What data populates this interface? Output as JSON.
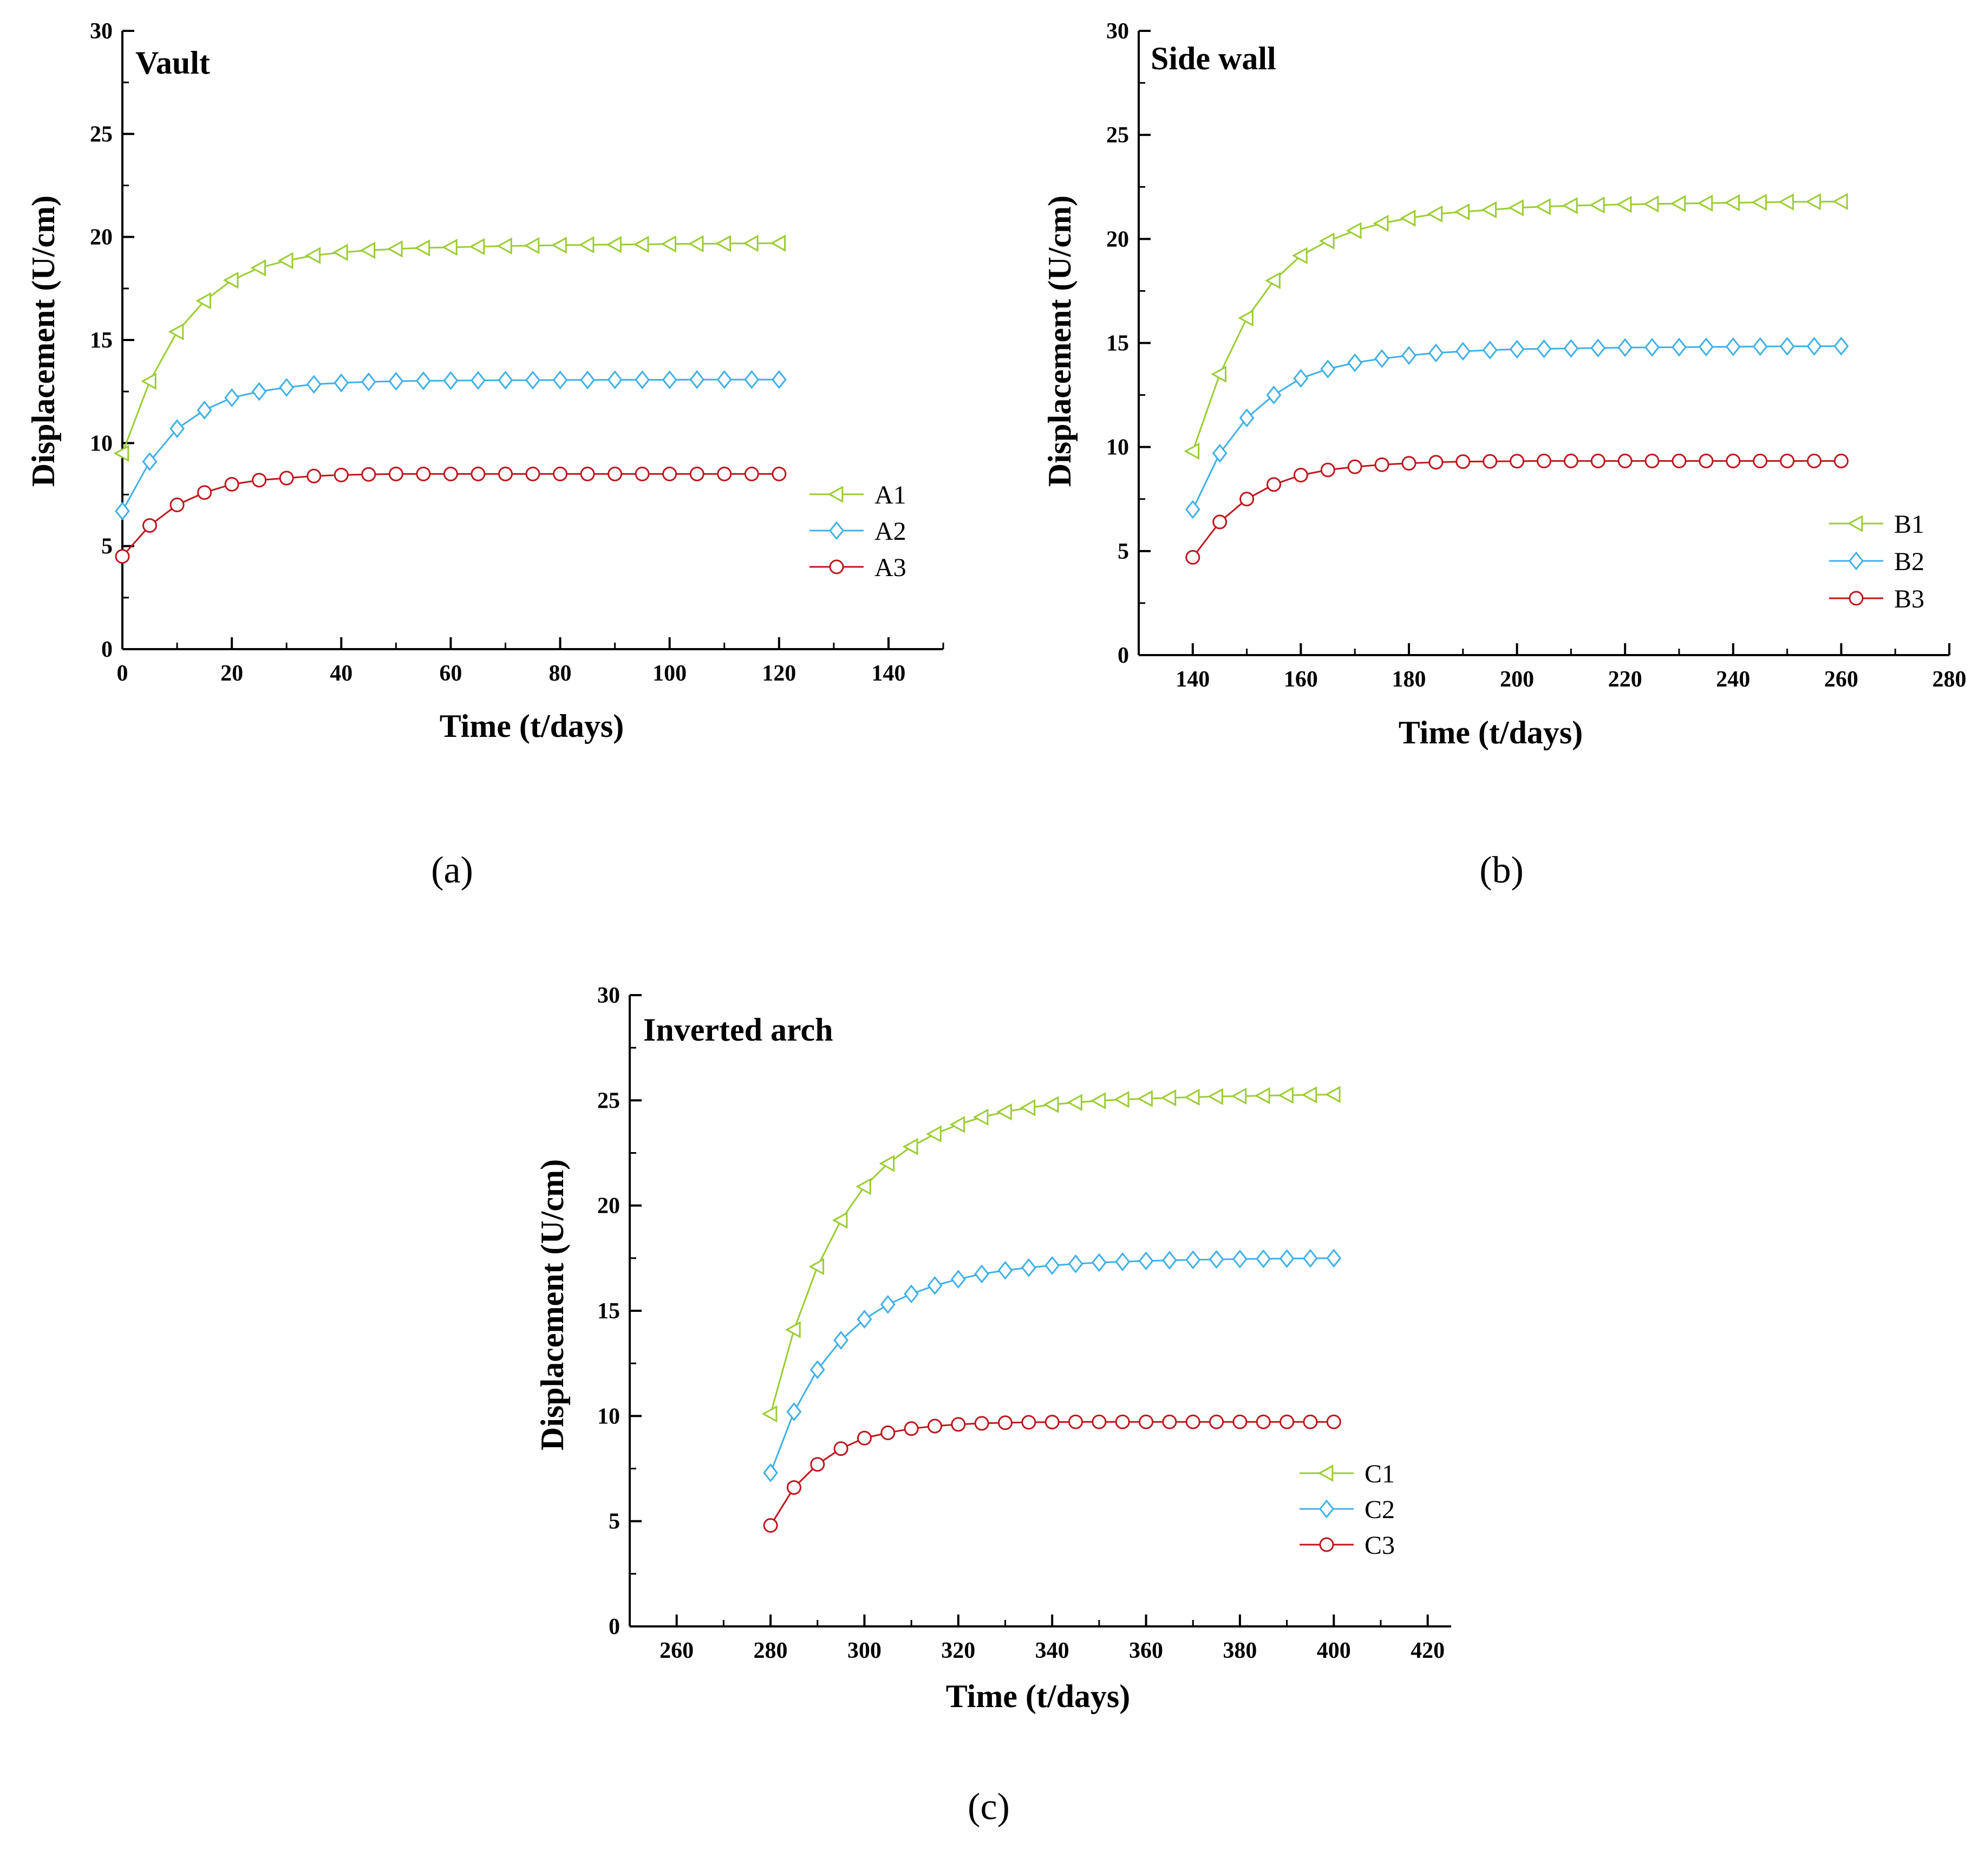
{
  "colors": {
    "green": "#9ACD32",
    "blue": "#3EB0E8",
    "red": "#C0141C",
    "axis": "#000000"
  },
  "chart_data": [
    {
      "type": "line",
      "panel": "(a)",
      "title": "Vault",
      "xlabel": "Time (t/days)",
      "ylabel": "Displacement (U/cm)",
      "xlim": [
        0,
        150
      ],
      "ylim": [
        0,
        30
      ],
      "xticks": [
        0,
        20,
        40,
        60,
        80,
        100,
        120,
        140
      ],
      "yticks": [
        0,
        5,
        10,
        15,
        20,
        25,
        30
      ],
      "x": [
        0,
        5,
        10,
        15,
        20,
        25,
        30,
        35,
        40,
        45,
        50,
        55,
        60,
        65,
        70,
        75,
        80,
        85,
        90,
        95,
        100,
        105,
        110,
        115,
        120
      ],
      "legend": "right",
      "series": [
        {
          "name": "A1",
          "marker": "triangle-left",
          "color": "green",
          "values": [
            9.5,
            13.0,
            15.4,
            16.9,
            17.9,
            18.5,
            18.85,
            19.1,
            19.25,
            19.35,
            19.42,
            19.47,
            19.5,
            19.53,
            19.56,
            19.58,
            19.6,
            19.62,
            19.63,
            19.64,
            19.66,
            19.67,
            19.68,
            19.69,
            19.7
          ]
        },
        {
          "name": "A2",
          "marker": "diamond",
          "color": "blue",
          "values": [
            6.7,
            9.1,
            10.7,
            11.6,
            12.2,
            12.5,
            12.7,
            12.85,
            12.92,
            12.97,
            13.0,
            13.02,
            13.03,
            13.04,
            13.05,
            13.05,
            13.06,
            13.06,
            13.07,
            13.07,
            13.07,
            13.08,
            13.08,
            13.08,
            13.08
          ]
        },
        {
          "name": "A3",
          "marker": "circle",
          "color": "red",
          "values": [
            4.5,
            6.0,
            7.0,
            7.6,
            8.0,
            8.2,
            8.3,
            8.4,
            8.45,
            8.48,
            8.5,
            8.5,
            8.5,
            8.5,
            8.5,
            8.5,
            8.5,
            8.5,
            8.5,
            8.5,
            8.5,
            8.5,
            8.5,
            8.5,
            8.5
          ]
        }
      ]
    },
    {
      "type": "line",
      "panel": "(b)",
      "title": "Side wall",
      "xlabel": "Time (t/days)",
      "ylabel": "Displacement (U/cm)",
      "xlim": [
        130,
        280
      ],
      "ylim": [
        0,
        30
      ],
      "xticks": [
        140,
        160,
        180,
        200,
        220,
        240,
        260,
        280
      ],
      "yticks": [
        0,
        5,
        10,
        15,
        20,
        25,
        30
      ],
      "x": [
        140,
        145,
        150,
        155,
        160,
        165,
        170,
        175,
        180,
        185,
        190,
        195,
        200,
        205,
        210,
        215,
        220,
        225,
        230,
        235,
        240,
        245,
        250,
        255,
        260
      ],
      "legend": "right",
      "series": [
        {
          "name": "B1",
          "marker": "triangle-left",
          "color": "green",
          "values": [
            9.8,
            13.5,
            16.2,
            18.0,
            19.2,
            19.9,
            20.4,
            20.75,
            21.0,
            21.2,
            21.3,
            21.4,
            21.5,
            21.55,
            21.6,
            21.63,
            21.66,
            21.68,
            21.7,
            21.72,
            21.74,
            21.76,
            21.78,
            21.79,
            21.8
          ]
        },
        {
          "name": "B2",
          "marker": "diamond",
          "color": "blue",
          "values": [
            7.0,
            9.7,
            11.4,
            12.5,
            13.3,
            13.75,
            14.05,
            14.25,
            14.4,
            14.52,
            14.6,
            14.66,
            14.7,
            14.72,
            14.74,
            14.76,
            14.78,
            14.79,
            14.8,
            14.81,
            14.82,
            14.83,
            14.84,
            14.84,
            14.85
          ]
        },
        {
          "name": "B3",
          "marker": "circle",
          "color": "red",
          "values": [
            4.7,
            6.4,
            7.5,
            8.2,
            8.65,
            8.9,
            9.05,
            9.15,
            9.22,
            9.27,
            9.3,
            9.31,
            9.32,
            9.33,
            9.33,
            9.33,
            9.33,
            9.33,
            9.33,
            9.33,
            9.33,
            9.33,
            9.33,
            9.33,
            9.33
          ]
        }
      ]
    },
    {
      "type": "line",
      "panel": "(c)",
      "title": "Inverted arch",
      "xlabel": "Time (t/days)",
      "ylabel": "Displacement (U/cm)",
      "xlim": [
        250,
        425
      ],
      "ylim": [
        0,
        30
      ],
      "xticks": [
        260,
        280,
        300,
        320,
        340,
        360,
        380,
        400,
        420
      ],
      "yticks": [
        0,
        5,
        10,
        15,
        20,
        25,
        30
      ],
      "x": [
        280,
        285,
        290,
        295,
        300,
        305,
        310,
        315,
        320,
        325,
        330,
        335,
        340,
        345,
        350,
        355,
        360,
        365,
        370,
        375,
        380,
        385,
        390,
        395,
        400
      ],
      "legend": "right",
      "series": [
        {
          "name": "C1",
          "marker": "triangle-left",
          "color": "green",
          "values": [
            10.1,
            14.1,
            17.1,
            19.3,
            20.9,
            22.0,
            22.8,
            23.4,
            23.85,
            24.2,
            24.45,
            24.65,
            24.8,
            24.9,
            24.98,
            25.04,
            25.08,
            25.12,
            25.15,
            25.18,
            25.2,
            25.22,
            25.24,
            25.26,
            25.28
          ]
        },
        {
          "name": "C2",
          "marker": "diamond",
          "color": "blue",
          "values": [
            7.3,
            10.2,
            12.2,
            13.6,
            14.6,
            15.3,
            15.8,
            16.2,
            16.5,
            16.75,
            16.92,
            17.05,
            17.15,
            17.23,
            17.29,
            17.33,
            17.37,
            17.4,
            17.42,
            17.44,
            17.46,
            17.47,
            17.48,
            17.49,
            17.5
          ]
        },
        {
          "name": "C3",
          "marker": "circle",
          "color": "red",
          "values": [
            4.8,
            6.6,
            7.7,
            8.45,
            8.95,
            9.2,
            9.4,
            9.52,
            9.6,
            9.65,
            9.68,
            9.7,
            9.71,
            9.72,
            9.72,
            9.72,
            9.72,
            9.72,
            9.72,
            9.72,
            9.72,
            9.72,
            9.72,
            9.72,
            9.72
          ]
        }
      ]
    }
  ]
}
